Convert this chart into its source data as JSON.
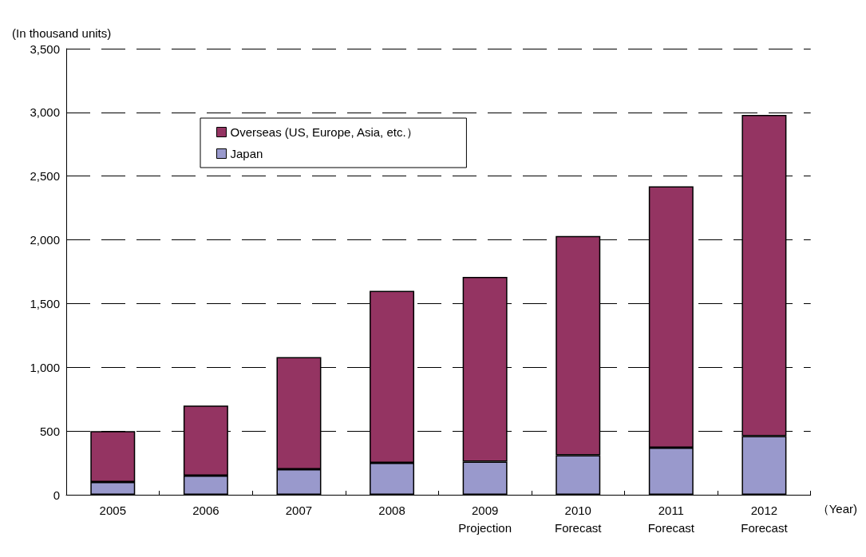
{
  "chart_data": {
    "type": "bar",
    "stacked": true,
    "ylabel": "(In thousand units)",
    "xlabel": "（Year)",
    "categories": [
      "2005",
      "2006",
      "2007",
      "2008",
      "2009\nProjection",
      "2010\nForecast",
      "2011\nForecast",
      "2012\nForecast"
    ],
    "series": [
      {
        "name": "Japan",
        "color": "#9999cc",
        "values": [
          100,
          150,
          200,
          250,
          260,
          310,
          370,
          460
        ]
      },
      {
        "name": "Overseas (US, Europe, Asia, etc.）",
        "color": "#943462",
        "values": [
          400,
          550,
          880,
          1350,
          1450,
          1720,
          2050,
          2520
        ]
      }
    ],
    "ylim": [
      0,
      3500
    ],
    "yticks": [
      0,
      500,
      {
        "value": 1000,
        "label": "1,000"
      },
      {
        "value": 1500,
        "label": "1,500"
      },
      {
        "value": 2000,
        "label": "2,000"
      },
      {
        "value": 2500,
        "label": "2,500"
      },
      {
        "value": 3000,
        "label": "3,000"
      },
      {
        "value": 3500,
        "label": "3,500"
      }
    ],
    "grid": "y",
    "legend": "top left"
  }
}
